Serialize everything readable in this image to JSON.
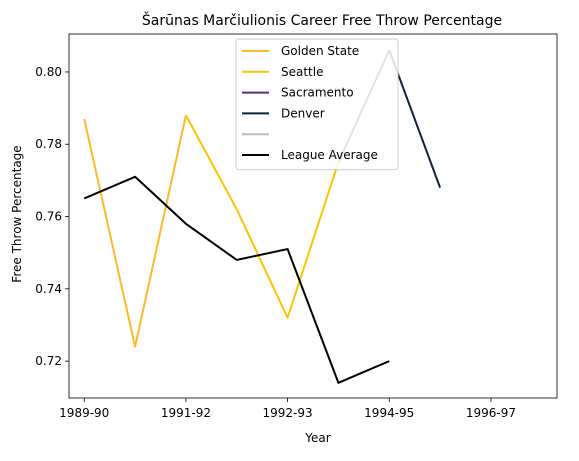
{
  "chart_data": {
    "type": "line",
    "title": "Šarūnas Marčiulionis Career Free Throw Percentage",
    "xlabel": "Year",
    "ylabel": "Free Throw Percentage",
    "x_tick_labels": [
      "1989-90",
      "1991-92",
      "1992-93",
      "1994-95",
      "1996-97"
    ],
    "x_tick_positions": [
      0,
      2,
      4,
      6,
      8
    ],
    "xlim": [
      -0.3,
      9.3
    ],
    "ylim": [
      0.7098,
      0.8105
    ],
    "y_ticks": [
      0.72,
      0.74,
      0.76,
      0.78,
      0.8
    ],
    "y_tick_labels": [
      "0.72",
      "0.74",
      "0.76",
      "0.78",
      "0.80"
    ],
    "grid": false,
    "legend_position": "top-center",
    "series": [
      {
        "name": "Golden State",
        "color": "#FDB927",
        "points": [
          [
            0,
            0.787
          ],
          [
            1,
            0.724
          ],
          [
            2,
            0.788
          ]
        ]
      },
      {
        "name": "Seattle",
        "color": "#FFC200",
        "points": [
          [
            2,
            0.788
          ],
          [
            3,
            0.762
          ],
          [
            4,
            0.732
          ],
          [
            5,
            0.775
          ]
        ]
      },
      {
        "name": "Sacramento",
        "color": "#5A2D81",
        "points": [
          [
            5,
            0.775
          ],
          [
            6,
            0.806
          ]
        ]
      },
      {
        "name": "Denver",
        "color": "#0E2240",
        "points": [
          [
            6,
            0.806
          ],
          [
            7,
            0.768
          ]
        ]
      },
      {
        "name": "",
        "color": "#BBBBBB",
        "points": []
      },
      {
        "name": "League Average",
        "color": "#000000",
        "points": [
          [
            0,
            0.765
          ],
          [
            1,
            0.771
          ],
          [
            2,
            0.758
          ],
          [
            3,
            0.748
          ],
          [
            4,
            0.751
          ],
          [
            5,
            0.714
          ],
          [
            6,
            0.72
          ]
        ]
      }
    ]
  }
}
